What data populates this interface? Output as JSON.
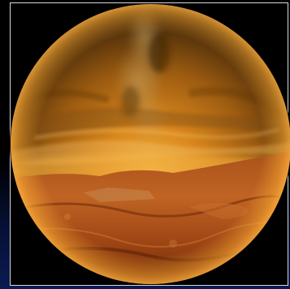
{
  "scene": {
    "description_tokens": [
      "fisheye-sky",
      "milky-way",
      "cloud-bands",
      "rocky-terrain"
    ],
    "colors": {
      "sky_top": "#2a1a08",
      "sky_mid": "#b86e12",
      "horizon_glow": "#f2a22a",
      "terrain_dark": "#6e2a08",
      "terrain_light": "#c46a22",
      "background": "#000000",
      "background_bottom": "#0b1a52",
      "frame": "#d9d9d9"
    }
  }
}
